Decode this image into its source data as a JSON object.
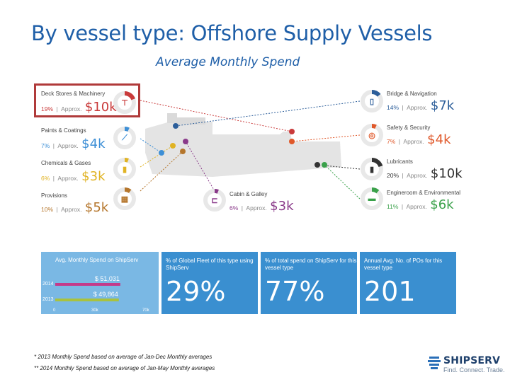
{
  "slide": {
    "title": "By vessel type:  Offshore Supply Vessels",
    "subtitle": "Average Monthly Spend"
  },
  "left_categories": [
    {
      "name": "Deck Stores & Machinery",
      "pct": "19%",
      "approx": "Approx.",
      "value": "$10k",
      "color": "#c93a3a",
      "icon": "cleat-icon",
      "glyph": "⊤"
    },
    {
      "name": "Paints & Coatings",
      "pct": "7%",
      "approx": "Approx.",
      "value": "$4k",
      "color": "#3d8fd6",
      "icon": "paint-roller-icon",
      "glyph": "⟋"
    },
    {
      "name": "Chemicals & Gases",
      "pct": "6%",
      "approx": "Approx.",
      "value": "$3k",
      "color": "#e0b324",
      "icon": "canister-icon",
      "glyph": "▮"
    },
    {
      "name": "Provisions",
      "pct": "10%",
      "approx": "Approx.",
      "value": "$5k",
      "color": "#b5762c",
      "icon": "food-basket-icon",
      "glyph": "▦"
    }
  ],
  "right_categories": [
    {
      "name": "Bridge & Navigation",
      "pct": "14%",
      "approx": "Approx.",
      "value": "$7k",
      "color": "#2c5e9a",
      "icon": "device-icon",
      "glyph": "▯"
    },
    {
      "name": "Safety & Security",
      "pct": "7%",
      "approx": "Approx.",
      "value": "$4k",
      "color": "#e0582a",
      "icon": "lifebuoy-icon",
      "glyph": "◎"
    },
    {
      "name": "Lubricants",
      "pct": "20%",
      "approx": "Approx.",
      "value": "$10k",
      "color": "#333333",
      "icon": "oil-can-icon",
      "glyph": "▮"
    },
    {
      "name": "Engineroom & Environmental",
      "pct": "11%",
      "approx": "Approx.",
      "value": "$6k",
      "color": "#3aa14a",
      "icon": "engine-icon",
      "glyph": "▬"
    }
  ],
  "center_category": {
    "name": "Cabin & Galley",
    "pct": "6%",
    "approx": "Approx.",
    "value": "$3k",
    "color": "#8a3a8a",
    "icon": "bed-icon",
    "glyph": "⊏"
  },
  "separator": "|",
  "chart_data": {
    "type": "bar",
    "title": "Avg. Monthly Spend on ShipServ",
    "categories": [
      "2014",
      "2013"
    ],
    "values": [
      51031,
      49864
    ],
    "value_labels": [
      "$ 51,031",
      "$ 49,864"
    ],
    "bar_colors": [
      "#c43a8a",
      "#a9c23e"
    ],
    "xticks": [
      "0",
      "30k",
      "70k"
    ],
    "xlim": [
      0,
      70000
    ]
  },
  "stats": [
    {
      "label": "% of Global Fleet of this type using ShipServ",
      "value": "29%"
    },
    {
      "label": "% of total spend on ShipServ for this vessel type",
      "value": "77%"
    },
    {
      "label": "Annual Avg. No. of POs for this vessel type",
      "value": "201"
    }
  ],
  "footnotes": [
    "*   2013 Monthly Spend based on average of Jan-Dec Monthly averages",
    "** 2014  Monthly Spend based on average of Jan-May Monthly averages"
  ],
  "logo": {
    "brand": "SHIPSERV",
    "tagline": "Find. Connect. Trade."
  }
}
